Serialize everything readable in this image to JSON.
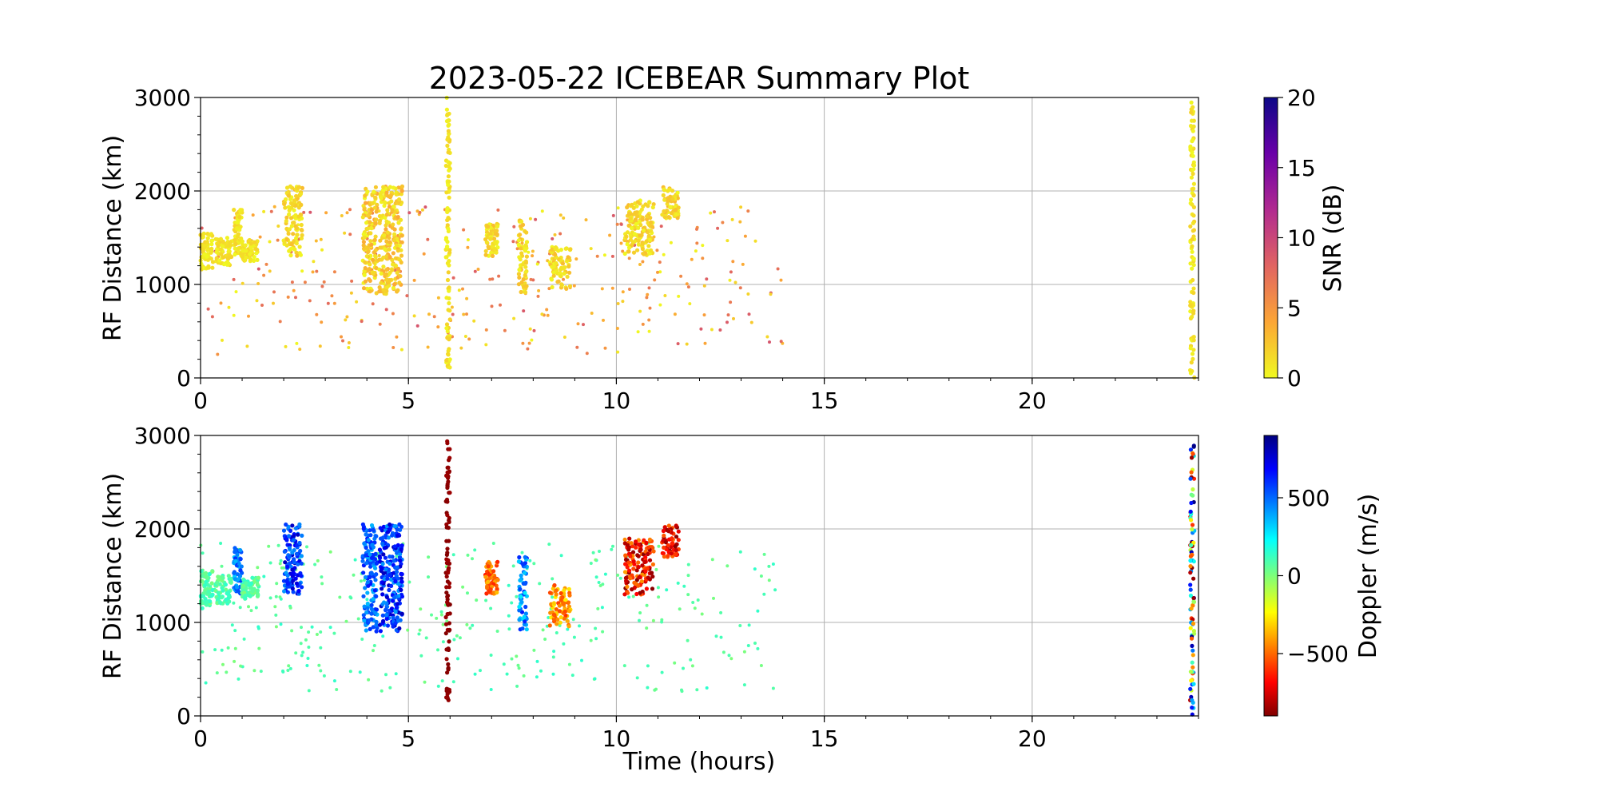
{
  "chart_data": [
    {
      "type": "scatter",
      "title": "2023-05-22 ICEBEAR Summary Plot",
      "xlabel": "",
      "ylabel": "RF Distance (km)",
      "xlim": [
        0,
        24
      ],
      "ylim": [
        0,
        3000
      ],
      "xticks": [
        "0",
        "5",
        "10",
        "15",
        "20"
      ],
      "yticks": [
        "0",
        "1000",
        "2000",
        "3000"
      ],
      "grid": true,
      "color_variable": "SNR",
      "colorbar": {
        "label": "SNR (dB)",
        "range": [
          0,
          20
        ],
        "ticks": [
          "0",
          "5",
          "10",
          "15",
          "20"
        ],
        "colormap": "plasma_r"
      },
      "clusters": [
        {
          "x": [
            0.0,
            0.3
          ],
          "y": [
            1150,
            1550
          ],
          "c": [
            0,
            2
          ]
        },
        {
          "x": [
            0.35,
            0.75
          ],
          "y": [
            1200,
            1500
          ],
          "c": [
            0,
            2
          ]
        },
        {
          "x": [
            0.8,
            1.0
          ],
          "y": [
            1300,
            1800
          ],
          "c": [
            0,
            2
          ]
        },
        {
          "x": [
            1.0,
            1.4
          ],
          "y": [
            1250,
            1480
          ],
          "c": [
            0,
            2
          ]
        },
        {
          "x": [
            2.0,
            2.45
          ],
          "y": [
            1300,
            2050
          ],
          "c": [
            0,
            3
          ]
        },
        {
          "x": [
            3.9,
            4.25
          ],
          "y": [
            900,
            2050
          ],
          "c": [
            0,
            4
          ]
        },
        {
          "x": [
            4.3,
            4.85
          ],
          "y": [
            900,
            2050
          ],
          "c": [
            0,
            4
          ]
        },
        {
          "x": [
            5.9,
            6.0
          ],
          "y": [
            100,
            3000
          ],
          "c": [
            0,
            2
          ]
        },
        {
          "x": [
            6.85,
            7.15
          ],
          "y": [
            1300,
            1650
          ],
          "c": [
            0,
            3
          ]
        },
        {
          "x": [
            7.65,
            7.85
          ],
          "y": [
            900,
            1700
          ],
          "c": [
            0,
            3
          ]
        },
        {
          "x": [
            8.4,
            8.9
          ],
          "y": [
            950,
            1400
          ],
          "c": [
            0,
            3
          ]
        },
        {
          "x": [
            10.2,
            10.9
          ],
          "y": [
            1300,
            1900
          ],
          "c": [
            0,
            3
          ]
        },
        {
          "x": [
            11.1,
            11.5
          ],
          "y": [
            1700,
            2050
          ],
          "c": [
            0,
            3
          ]
        },
        {
          "x": [
            23.8,
            23.9
          ],
          "y": [
            0,
            2950
          ],
          "c": [
            0,
            2
          ]
        }
      ],
      "scatter_region": {
        "x": [
          0,
          14
        ],
        "y": [
          0,
          1850
        ],
        "c": [
          0,
          9
        ]
      }
    },
    {
      "type": "scatter",
      "title": "",
      "xlabel": "Time (hours)",
      "ylabel": "RF Distance (km)",
      "xlim": [
        0,
        24
      ],
      "ylim": [
        0,
        3000
      ],
      "xticks": [
        "0",
        "5",
        "10",
        "15",
        "20"
      ],
      "yticks": [
        "0",
        "1000",
        "2000",
        "3000"
      ],
      "grid": true,
      "color_variable": "Doppler",
      "colorbar": {
        "label": "Doppler (m/s)",
        "range": [
          -900,
          900
        ],
        "ticks": [
          "500",
          "0",
          "−500"
        ],
        "tick_values": [
          500,
          0,
          -500
        ],
        "colormap": "jet_r"
      },
      "clusters": [
        {
          "x": [
            0.0,
            0.3
          ],
          "y": [
            1150,
            1550
          ],
          "c": [
            0,
            150
          ]
        },
        {
          "x": [
            0.35,
            0.75
          ],
          "y": [
            1200,
            1500
          ],
          "c": [
            0,
            150
          ]
        },
        {
          "x": [
            0.8,
            1.0
          ],
          "y": [
            1300,
            1800
          ],
          "c": [
            300,
            600
          ]
        },
        {
          "x": [
            1.0,
            1.4
          ],
          "y": [
            1250,
            1480
          ],
          "c": [
            0,
            150
          ]
        },
        {
          "x": [
            2.0,
            2.45
          ],
          "y": [
            1300,
            2050
          ],
          "c": [
            400,
            800
          ]
        },
        {
          "x": [
            3.9,
            4.25
          ],
          "y": [
            900,
            2050
          ],
          "c": [
            350,
            650
          ]
        },
        {
          "x": [
            4.3,
            4.85
          ],
          "y": [
            900,
            2050
          ],
          "c": [
            400,
            800
          ]
        },
        {
          "x": [
            5.9,
            6.0
          ],
          "y": [
            150,
            2980
          ],
          "c": [
            -900,
            -850
          ]
        },
        {
          "x": [
            6.85,
            7.15
          ],
          "y": [
            1300,
            1650
          ],
          "c": [
            -650,
            -350
          ]
        },
        {
          "x": [
            7.65,
            7.85
          ],
          "y": [
            900,
            1700
          ],
          "c": [
            250,
            650
          ]
        },
        {
          "x": [
            8.4,
            8.9
          ],
          "y": [
            950,
            1400
          ],
          "c": [
            -600,
            -250
          ]
        },
        {
          "x": [
            10.2,
            10.9
          ],
          "y": [
            1300,
            1900
          ],
          "c": [
            -900,
            -400
          ]
        },
        {
          "x": [
            11.1,
            11.5
          ],
          "y": [
            1700,
            2050
          ],
          "c": [
            -900,
            -500
          ]
        },
        {
          "x": [
            23.8,
            23.9
          ],
          "y": [
            0,
            2950
          ],
          "c": [
            -900,
            900
          ]
        }
      ],
      "scatter_region": {
        "x": [
          0,
          14
        ],
        "y": [
          0,
          1850
        ],
        "c": [
          0,
          150
        ]
      }
    }
  ]
}
